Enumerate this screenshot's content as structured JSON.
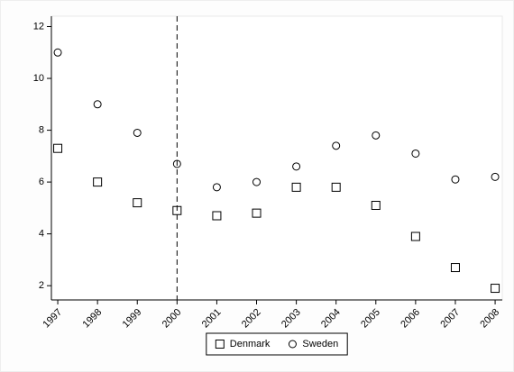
{
  "chart_data": {
    "type": "scatter",
    "x": [
      1997,
      1998,
      1999,
      2000,
      2001,
      2002,
      2003,
      2004,
      2005,
      2006,
      2007,
      2008
    ],
    "series": [
      {
        "name": "Denmark",
        "color": "#000000",
        "marker": "square",
        "values": [
          7.3,
          6.0,
          5.2,
          4.9,
          4.7,
          4.8,
          5.8,
          5.8,
          5.1,
          3.9,
          2.7,
          1.9
        ]
      },
      {
        "name": "Sweden",
        "color": "#000000",
        "marker": "circle",
        "values": [
          11.0,
          9.0,
          7.9,
          6.7,
          5.8,
          6.0,
          6.6,
          7.4,
          7.8,
          7.1,
          6.1,
          6.2
        ]
      }
    ],
    "xlim": [
      1996.84,
      2008.18
    ],
    "ylim": [
      1.45,
      12.4
    ],
    "xticks": [
      1997,
      1998,
      1999,
      2000,
      2001,
      2002,
      2003,
      2004,
      2005,
      2006,
      2007,
      2008
    ],
    "yticks": [
      2,
      4,
      6,
      8,
      10,
      12
    ],
    "reference_line": 2000,
    "grid": false,
    "legend": "bottom"
  }
}
